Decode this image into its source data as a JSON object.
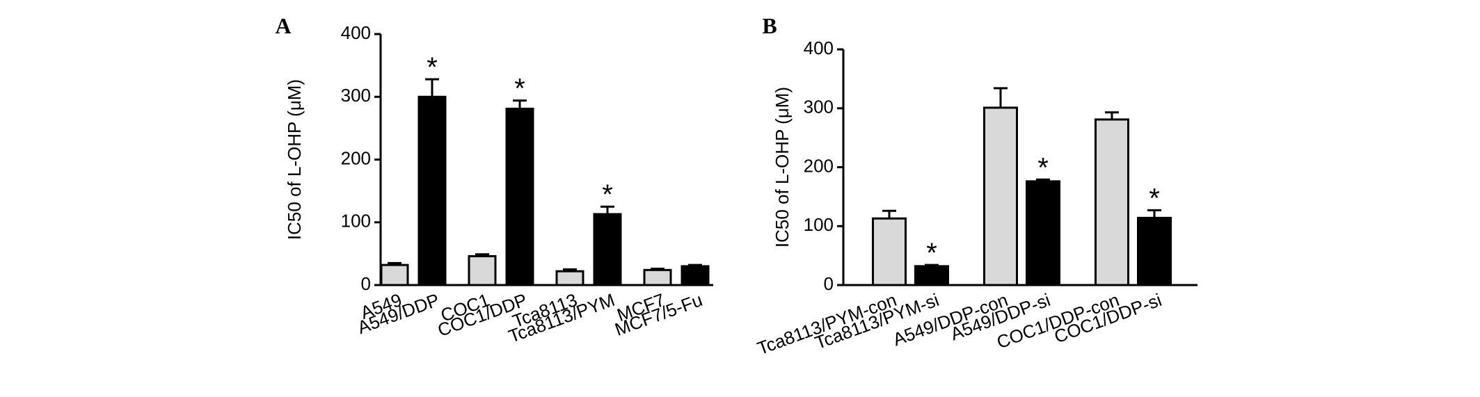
{
  "chart_data": [
    {
      "type": "bar",
      "panel": "A",
      "ylabel": "IC50 of L-OHP (μM)",
      "categories": [
        "A549",
        "A549/DDP",
        "COC1",
        "COC1/DDP",
        "Tca8113",
        "Tca8113/PYM",
        "MCF7",
        "MCF7/5-Fu"
      ],
      "values": [
        32,
        300,
        46,
        281,
        22,
        113,
        24,
        30
      ],
      "errors": [
        3,
        28,
        3,
        13,
        3,
        12,
        2,
        2
      ],
      "colors": [
        "#d9d9d9",
        "#000000",
        "#d9d9d9",
        "#000000",
        "#d9d9d9",
        "#000000",
        "#d9d9d9",
        "#000000"
      ],
      "annotations": [
        {
          "text": "*",
          "x": "A549/DDP"
        },
        {
          "text": "*",
          "x": "COC1/DDP"
        },
        {
          "text": "*",
          "x": "Tca8113/PYM"
        }
      ],
      "ylim": [
        0,
        400
      ],
      "yticks": [
        0,
        100,
        200,
        300,
        400
      ]
    },
    {
      "type": "bar",
      "panel": "B",
      "ylabel": "IC50 of L-OHP (μM)",
      "categories": [
        "Tca8113/PYM-con",
        "Tca8113/PYM-si",
        "A549/DDP-con",
        "A549/DDP-si",
        "COC1/DDP-con",
        "COC1/DDP-si"
      ],
      "values": [
        113,
        32,
        301,
        176,
        281,
        114
      ],
      "errors": [
        13,
        2,
        33,
        3,
        12,
        13
      ],
      "colors": [
        "#d9d9d9",
        "#000000",
        "#d9d9d9",
        "#000000",
        "#d9d9d9",
        "#000000"
      ],
      "annotations": [
        {
          "text": "*",
          "x": "Tca8113/PYM-si"
        },
        {
          "text": "*",
          "x": "A549/DDP-si"
        },
        {
          "text": "*",
          "x": "COC1/DDP-si"
        }
      ],
      "ylim": [
        0,
        400
      ],
      "yticks": [
        0,
        100,
        200,
        300,
        400
      ]
    }
  ]
}
